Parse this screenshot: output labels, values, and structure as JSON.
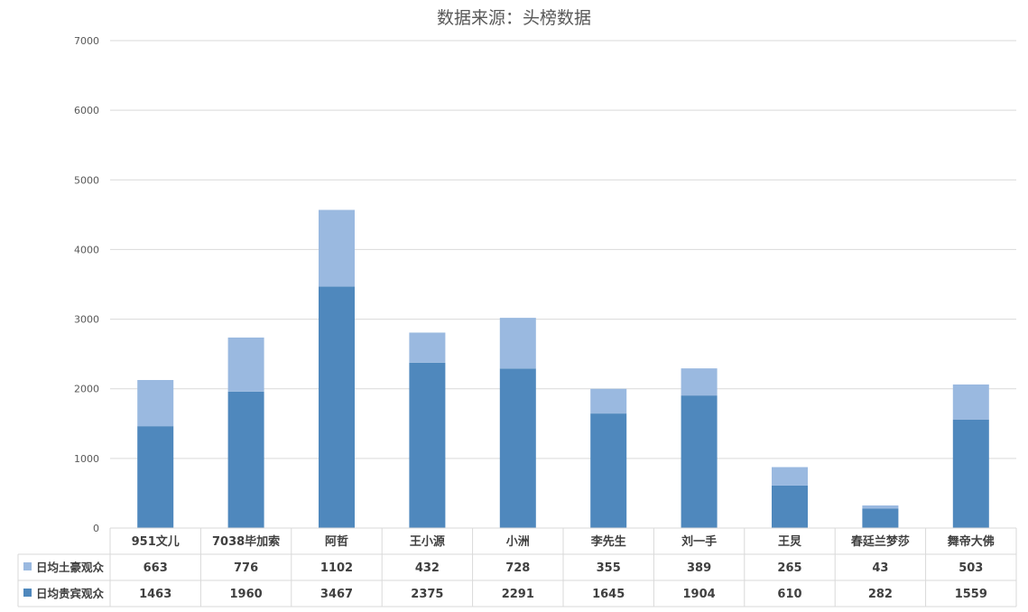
{
  "chart_data": {
    "type": "bar",
    "stacked": true,
    "title": "数据来源：头榜数据",
    "categories": [
      "951文儿",
      "7038毕加索",
      "阿哲",
      "王小源",
      "小洲",
      "李先生",
      "刘一手",
      "王炅",
      "春廷兰梦莎",
      "舞帝大佛"
    ],
    "series": [
      {
        "name": "日均土豪观众",
        "color": "#9ab9e0",
        "values": [
          663,
          776,
          1102,
          432,
          728,
          355,
          389,
          265,
          43,
          503
        ]
      },
      {
        "name": "日均贵宾观众",
        "color": "#4f88bd",
        "values": [
          1463,
          1960,
          3467,
          2375,
          2291,
          1645,
          1904,
          610,
          282,
          1559
        ]
      }
    ],
    "stack_order": [
      "日均贵宾观众",
      "日均土豪观众"
    ],
    "ylim": [
      0,
      7000
    ],
    "yticks": [
      0,
      1000,
      2000,
      3000,
      4000,
      5000,
      6000,
      7000
    ],
    "grid": true,
    "legend": "data-table",
    "xlabel": "",
    "ylabel": ""
  }
}
